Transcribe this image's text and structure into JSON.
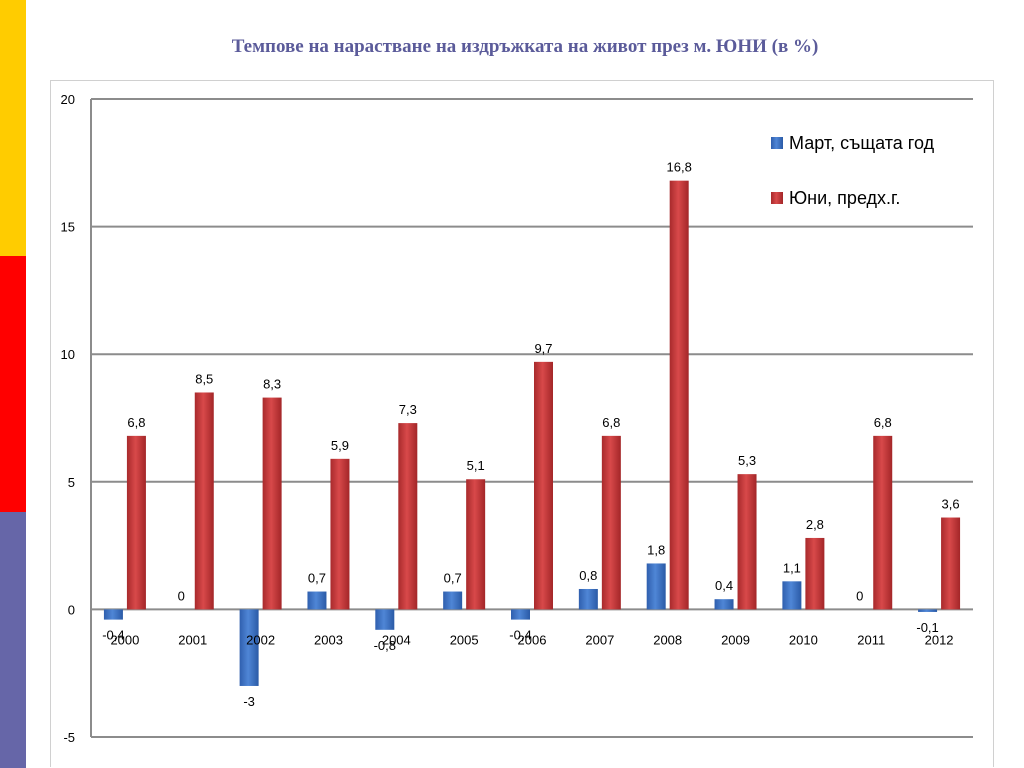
{
  "slide": {
    "title": "Темпове на нарастване на издръжката на живот през м. ЮНИ (в %)",
    "band_colors": [
      "#ffcc00",
      "#ff0000",
      "#6666a8"
    ]
  },
  "chart_data": {
    "type": "bar",
    "title": "Темпове на нарастване на издръжката на живот през м. ЮНИ (в %)",
    "categories": [
      "2000",
      "2001",
      "2002",
      "2003",
      "2004",
      "2005",
      "2006",
      "2007",
      "2008",
      "2009",
      "2010",
      "2011",
      "2012"
    ],
    "series": [
      {
        "name": "Март, същата год",
        "color": "#3a6fc4",
        "values": [
          -0.4,
          0,
          -3,
          0.7,
          -0.8,
          0.7,
          -0.4,
          0.8,
          1.8,
          0.4,
          1.1,
          0,
          -0.1
        ],
        "labels": [
          "-0,4",
          "0",
          "-3",
          "0,7",
          "-0,8",
          "0,7",
          "-0,4",
          "0,8",
          "1,8",
          "0,4",
          "1,1",
          "0",
          "-0,1"
        ]
      },
      {
        "name": "Юни, предх.г.",
        "color": "#c0393b",
        "values": [
          6.8,
          8.5,
          8.3,
          5.9,
          7.3,
          5.1,
          9.7,
          6.8,
          16.8,
          5.3,
          2.8,
          6.8,
          3.6
        ],
        "labels": [
          "6,8",
          "8,5",
          "8,3",
          "5,9",
          "7,3",
          "5,1",
          "9,7",
          "6,8",
          "16,8",
          "5,3",
          "2,8",
          "6,8",
          "3,6"
        ]
      }
    ],
    "ylim": [
      -5,
      20
    ],
    "yticks": [
      -5,
      0,
      5,
      10,
      15,
      20
    ],
    "ytick_labels": [
      "-5",
      "0",
      "5",
      "10",
      "15",
      "20"
    ],
    "xlabel": "",
    "ylabel": "",
    "grid": true,
    "legend_position": "top-right"
  }
}
